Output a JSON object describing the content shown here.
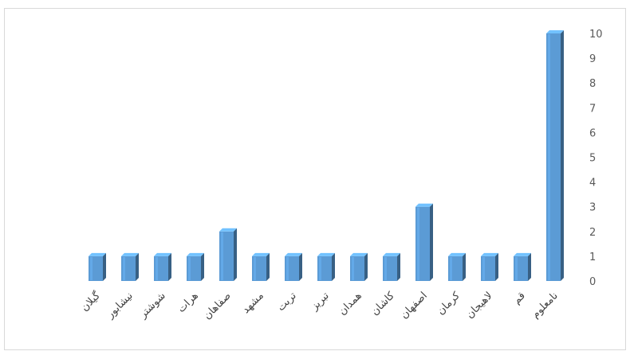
{
  "chart_data": {
    "type": "bar",
    "categories": [
      "گیلان",
      "نیشابور",
      "شوشتر",
      "هرات",
      "صفاهان",
      "مشهد",
      "تربت",
      "تبریز",
      "همدان",
      "کاشان",
      "اصفهان",
      "کرمان",
      "لاهیجان",
      "قم",
      "نامعلوم"
    ],
    "values": [
      1,
      1,
      1,
      1,
      2,
      1,
      1,
      1,
      1,
      1,
      3,
      1,
      1,
      1,
      10
    ],
    "ylim": [
      0,
      10
    ],
    "yticks": [
      "0",
      "1",
      "2",
      "3",
      "4",
      "5",
      "6",
      "7",
      "8",
      "9",
      "10"
    ],
    "y_axis_side": "right",
    "grid": false,
    "bar_color": "#5b9bd5",
    "title": "",
    "xlabel": "",
    "ylabel": ""
  }
}
